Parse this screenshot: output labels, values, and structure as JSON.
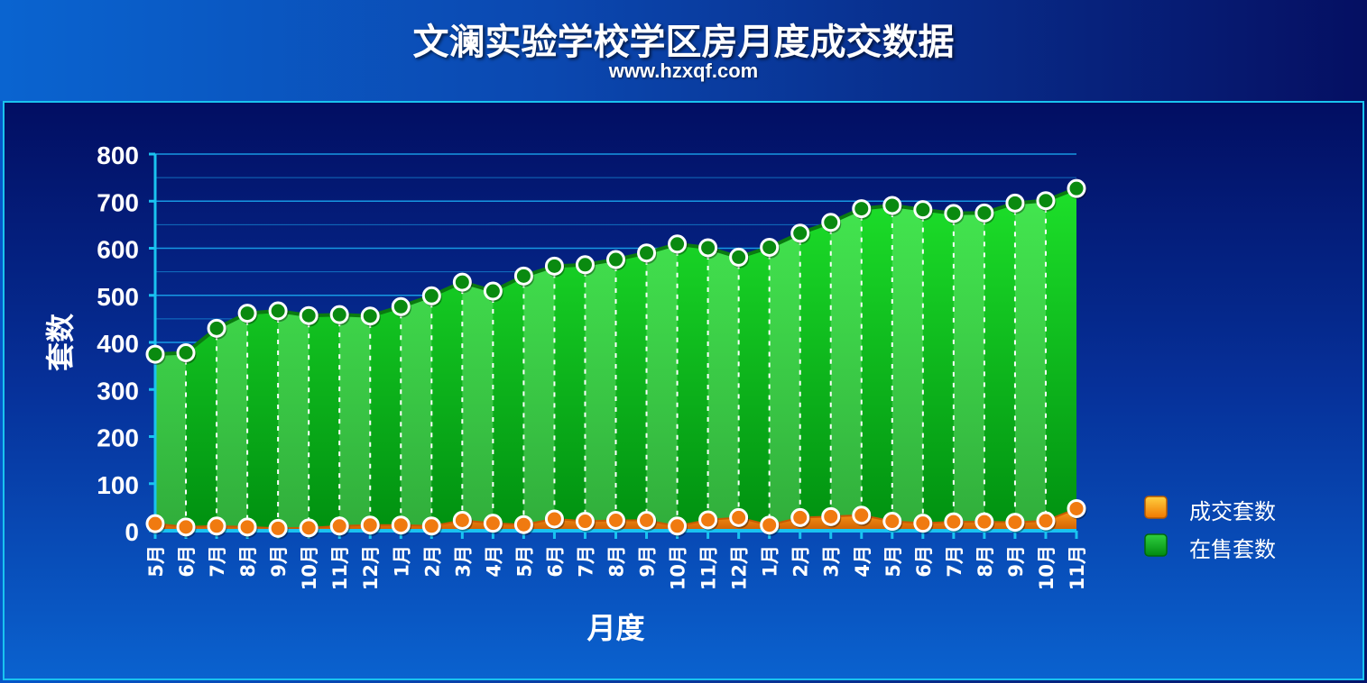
{
  "header": {
    "title": "文澜实验学校学区房月度成交数据",
    "subtitle": "www.hzxqf.com"
  },
  "colors": {
    "sold": "#f08a10",
    "onsale": "#00b000",
    "grid": "#1aa6ee",
    "axis": "#19c3f0"
  },
  "chart_data": {
    "type": "area",
    "title": "文澜实验学校学区房月度成交数据",
    "subtitle": "www.hzxqf.com",
    "xlabel": "月度",
    "ylabel": "套数",
    "ylim": [
      0,
      800
    ],
    "yticks": [
      0,
      100,
      200,
      300,
      400,
      500,
      600,
      700,
      800
    ],
    "grid": true,
    "legend_position": "right",
    "categories": [
      "5月",
      "6月",
      "7月",
      "8月",
      "9月",
      "10月",
      "11月",
      "12月",
      "1月",
      "2月",
      "3月",
      "4月",
      "5月",
      "6月",
      "7月",
      "8月",
      "9月",
      "10月",
      "11月",
      "12月",
      "1月",
      "2月",
      "3月",
      "4月",
      "5月",
      "6月",
      "7月",
      "8月",
      "9月",
      "10月",
      "11月"
    ],
    "series": [
      {
        "name": "成交套数",
        "color": "#f08a10",
        "values": [
          15,
          8,
          10,
          8,
          5,
          6,
          10,
          12,
          12,
          10,
          22,
          16,
          13,
          25,
          20,
          22,
          22,
          10,
          23,
          28,
          12,
          28,
          30,
          33,
          20,
          16,
          19,
          19,
          18,
          21,
          47
        ]
      },
      {
        "name": "在售套数",
        "color": "#00b000",
        "values": [
          375,
          378,
          430,
          462,
          467,
          457,
          459,
          456,
          476,
          499,
          528,
          509,
          541,
          562,
          565,
          576,
          590,
          609,
          601,
          581,
          602,
          632,
          655,
          684,
          691,
          682,
          674,
          675,
          696,
          701,
          727
        ]
      }
    ]
  }
}
